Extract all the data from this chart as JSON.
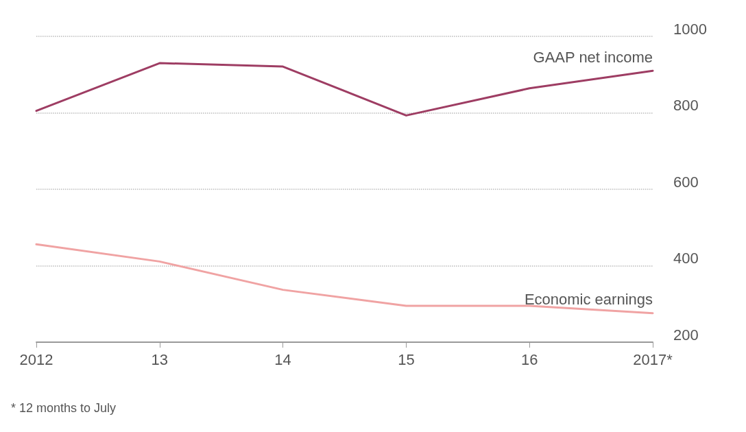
{
  "chart_data": {
    "type": "line",
    "categories": [
      "2012",
      "13",
      "14",
      "15",
      "16",
      "2017*"
    ],
    "series": [
      {
        "name": "GAAP net income",
        "color": "#9e3d63",
        "values": [
          805,
          930,
          921,
          793,
          864,
          910
        ]
      },
      {
        "name": "Economic earnings",
        "color": "#f0a3a3",
        "values": [
          456,
          411,
          337,
          295,
          295,
          276
        ]
      }
    ],
    "ylim": [
      200,
      1000
    ],
    "yticks": [
      200,
      400,
      600,
      800,
      1000
    ],
    "grid": "y",
    "marker": "none",
    "line_style": "solid",
    "annotations": [
      "* 12 months to July"
    ]
  }
}
